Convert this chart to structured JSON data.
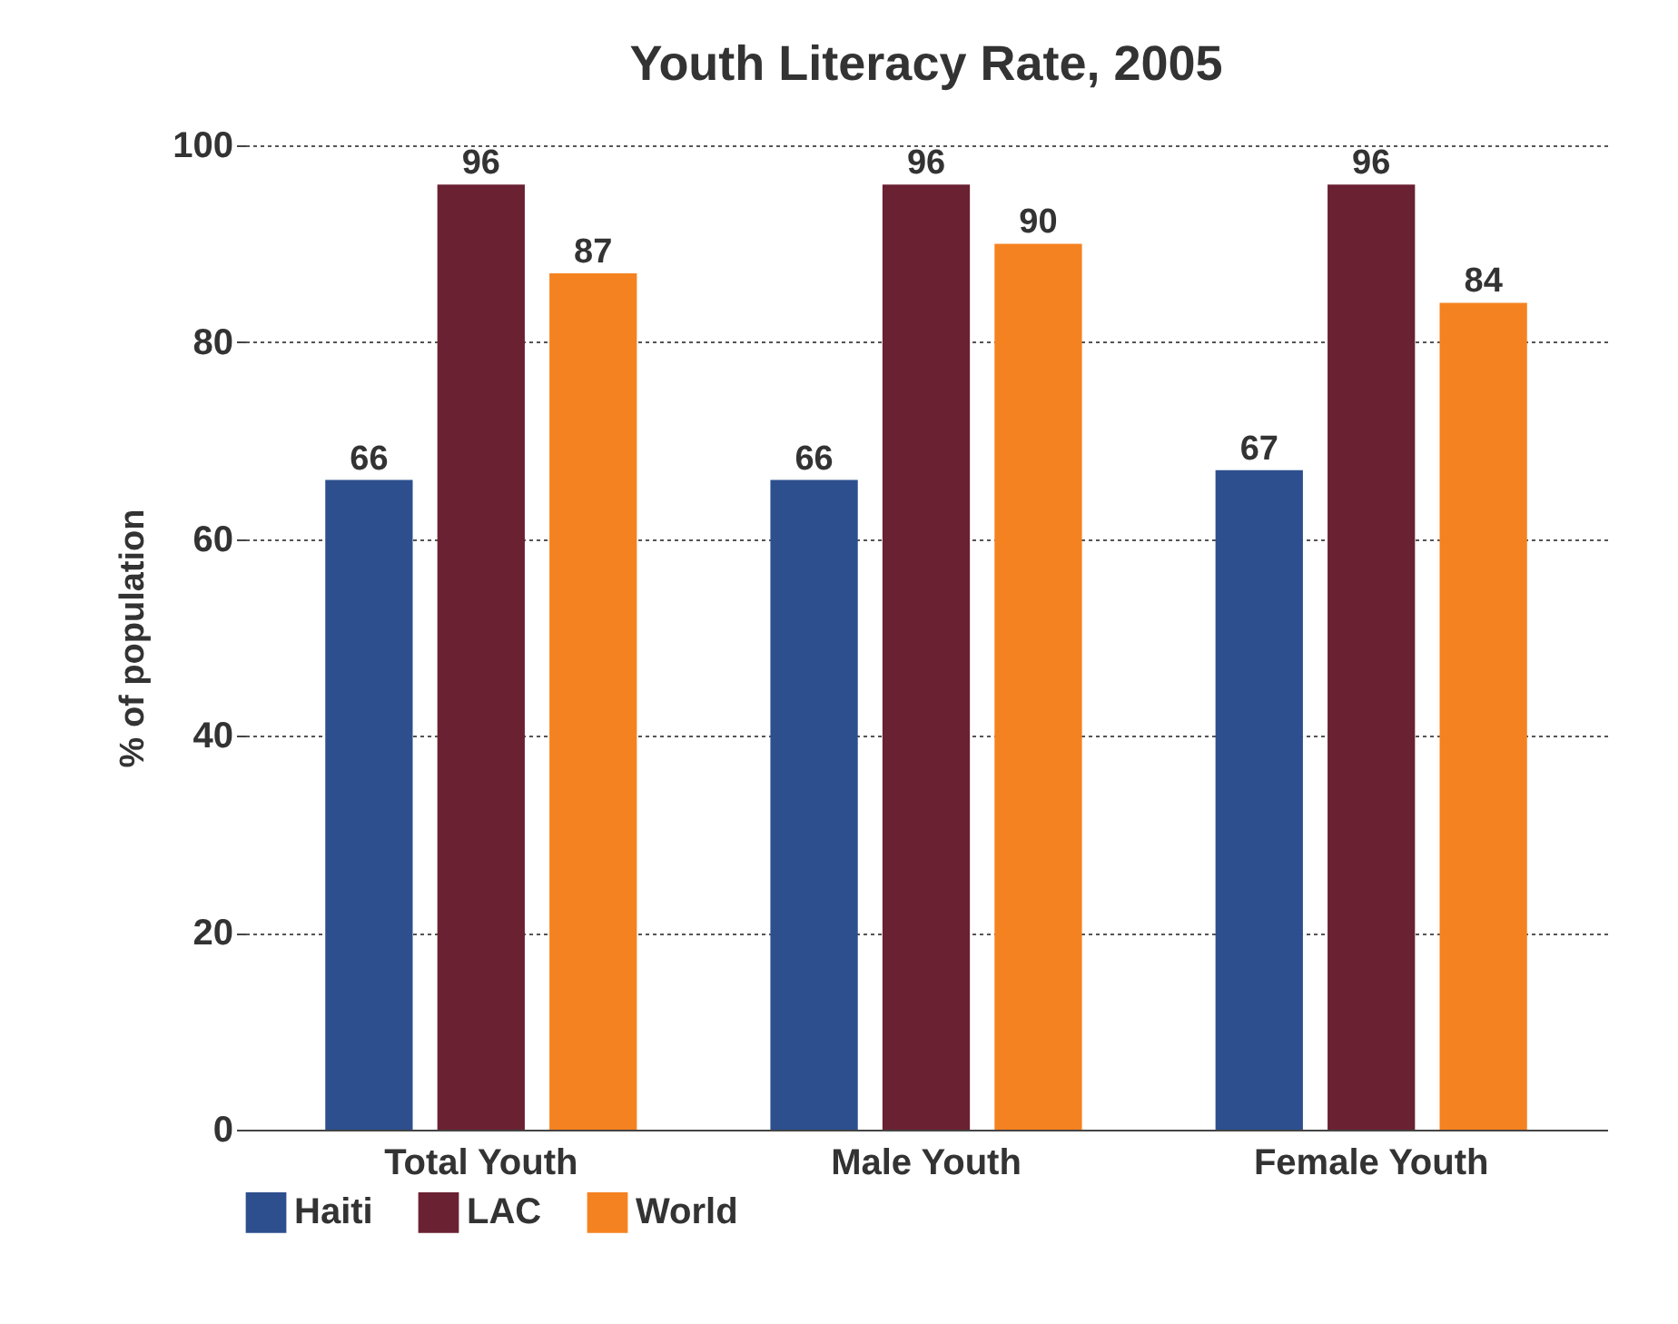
{
  "chart_data": {
    "type": "bar",
    "title": "Youth Literacy Rate, 2005",
    "ylabel": "% of population",
    "categories": [
      "Total Youth",
      "Male Youth",
      "Female Youth"
    ],
    "series": [
      {
        "name": "Haiti",
        "color": "#2d4f8e",
        "values": [
          66,
          66,
          67
        ]
      },
      {
        "name": "LAC",
        "color": "#6a2132",
        "values": [
          96,
          96,
          96
        ]
      },
      {
        "name": "World",
        "color": "#f58220",
        "values": [
          87,
          90,
          84
        ]
      }
    ],
    "ylim": [
      0,
      100
    ],
    "yticks": [
      0,
      20,
      40,
      60,
      80,
      100
    ],
    "grid": "y",
    "legend": "bottom",
    "data_labels": true
  }
}
